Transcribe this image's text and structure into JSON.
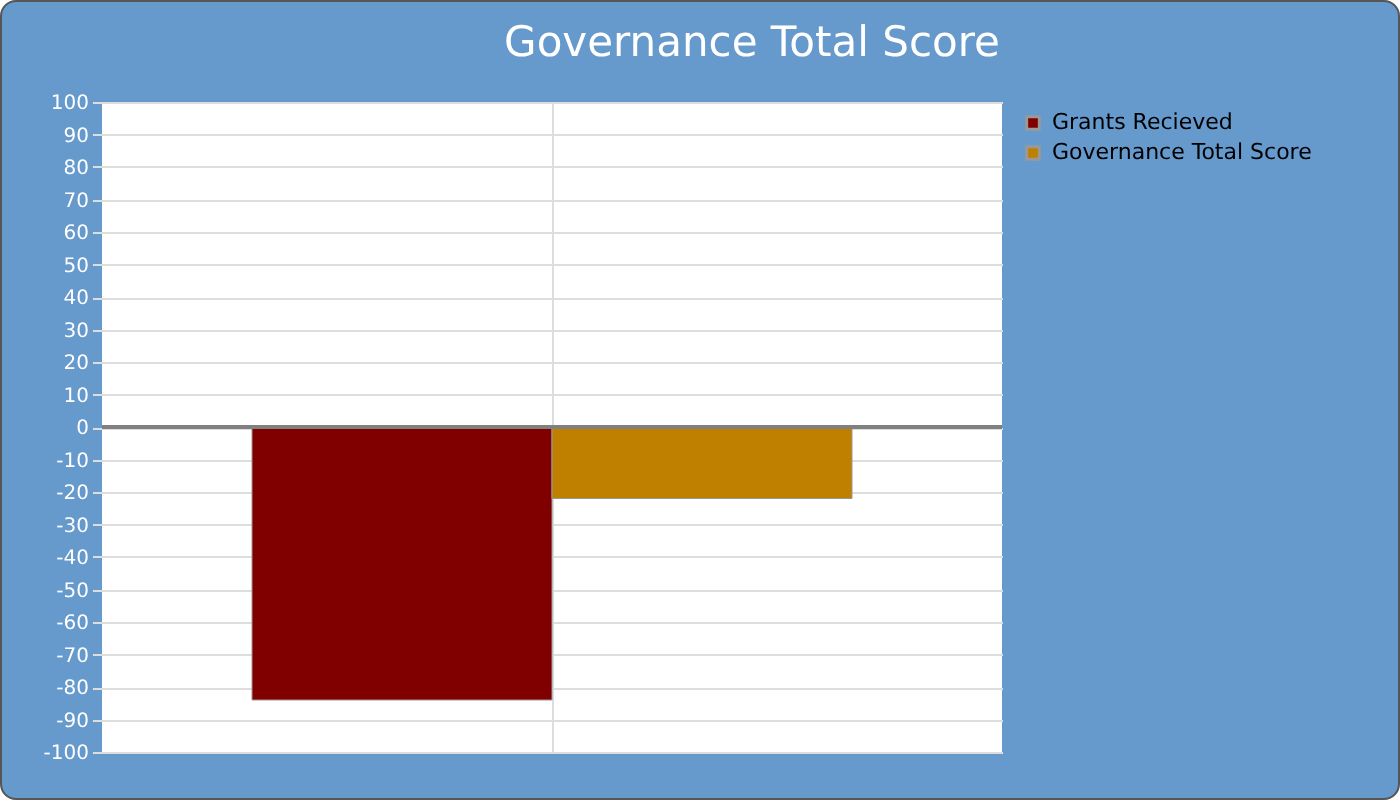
{
  "chart_data": {
    "type": "bar",
    "title": "Governance Total Score",
    "categories": [
      null
    ],
    "series": [
      {
        "name": "Grants Recieved",
        "color": "#800000",
        "values": [
          -84
        ]
      },
      {
        "name": "Governance Total Score",
        "color": "#bf8000",
        "values": [
          -22
        ]
      }
    ],
    "ylim": [
      -100,
      100
    ],
    "yticks": [
      -100,
      -90,
      -80,
      -70,
      -60,
      -50,
      -40,
      -30,
      -20,
      -10,
      0,
      10,
      20,
      30,
      40,
      50,
      60,
      70,
      80,
      90,
      100
    ],
    "ref_lines": [
      {
        "axis": "y",
        "value": 0,
        "color": "#808080"
      }
    ],
    "grid": true,
    "legend": "top right",
    "tick_labels": "y"
  }
}
